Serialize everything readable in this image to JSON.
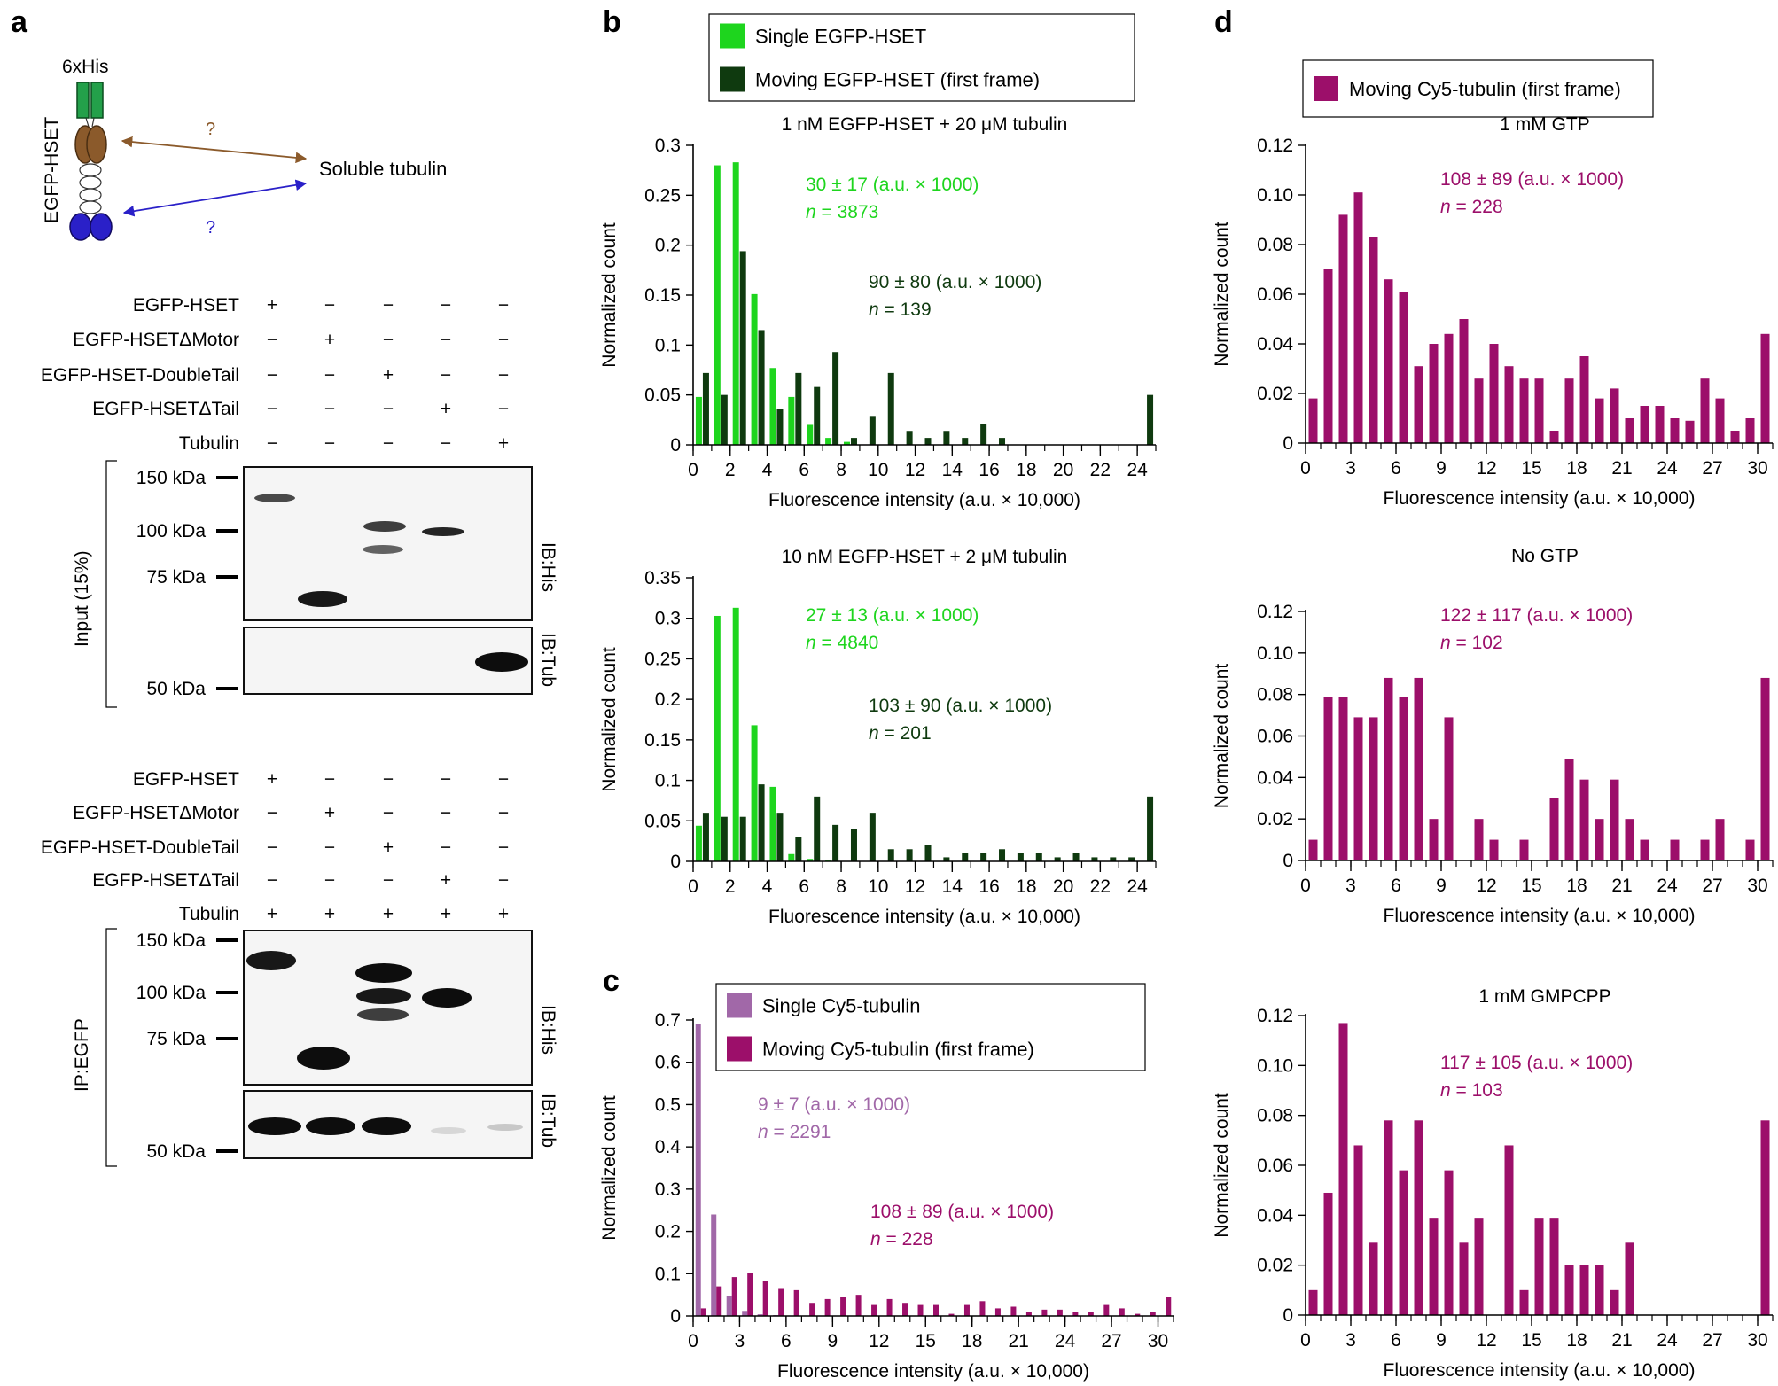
{
  "colors": {
    "single_egfp": "#1ed51e",
    "moving_egfp": "#0f3a0f",
    "single_cy5": "#a168a8",
    "moving_cy5": "#9c0f6a",
    "stat_light_green": "#1ed51e",
    "stat_dark_green": "#0f3a0f",
    "stat_light_purple": "#a168a8",
    "stat_magenta": "#9c0f6a",
    "arrow_brown": "#8b5a2b",
    "arrow_blue": "#2a20c8",
    "motor_blue": "#2a20c8",
    "tail_green": "#23a04a"
  },
  "panel_labels": {
    "a": "a",
    "b": "b",
    "c": "c",
    "d": "d"
  },
  "schematic": {
    "tag": "6xHis",
    "construct": "EGFP-HSET",
    "partner": "Soluble tubulin",
    "question": "?"
  },
  "blots": {
    "row_labels": [
      "EGFP-HSET",
      "EGFP-HSETΔMotor",
      "EGFP-HSET-DoubleTail",
      "EGFP-HSETΔTail",
      "Tubulin"
    ],
    "input_signs": [
      [
        "+",
        "−",
        "−",
        "−",
        "−"
      ],
      [
        "−",
        "+",
        "−",
        "−",
        "−"
      ],
      [
        "−",
        "−",
        "+",
        "−",
        "−"
      ],
      [
        "−",
        "−",
        "−",
        "+",
        "−"
      ],
      [
        "−",
        "−",
        "−",
        "−",
        "+"
      ]
    ],
    "ip_signs": [
      [
        "+",
        "−",
        "−",
        "−",
        "−"
      ],
      [
        "−",
        "+",
        "−",
        "−",
        "−"
      ],
      [
        "−",
        "−",
        "+",
        "−",
        "−"
      ],
      [
        "−",
        "−",
        "−",
        "+",
        "−"
      ],
      [
        "+",
        "+",
        "+",
        "+",
        "+"
      ]
    ],
    "mw_markers": [
      "150 kDa",
      "100 kDa",
      "75 kDa",
      "50 kDa"
    ],
    "input_label": "Input (15%)",
    "ip_label": "IP:EGFP",
    "ib_his": "IB:His",
    "ib_tub": "IB:Tub"
  },
  "chart_data": [
    {
      "id": "b-top",
      "type": "bar",
      "title": "1 nM EGFP-HSET + 20 μM tubulin",
      "xlabel": "Fluorescence intensity (a.u. × 10,000)",
      "ylabel": "Normalized count",
      "xlim": [
        0,
        25
      ],
      "ylim": [
        0,
        0.3
      ],
      "xticks": [
        0,
        2,
        4,
        6,
        8,
        10,
        12,
        14,
        16,
        18,
        20,
        22,
        24
      ],
      "yticks": [
        0,
        0.05,
        0.1,
        0.15,
        0.2,
        0.25,
        0.3
      ],
      "ytick_labels": [
        "0",
        "0.05",
        "0.1",
        "0.15",
        "0.2",
        "0.25",
        "0.3"
      ],
      "legend": [
        "Single EGFP-HSET",
        "Moving EGFP-HSET (first frame)"
      ],
      "annotations": [
        {
          "line1": "30 ± 17 (a.u. × 1000)",
          "line2": "n = 3873",
          "series": 0
        },
        {
          "line1": "90 ± 80 (a.u. × 1000)",
          "line2": "n = 139",
          "series": 1
        }
      ],
      "series": [
        {
          "name": "Single EGFP-HSET",
          "x": [
            1,
            2,
            3,
            4,
            5,
            6,
            7,
            8,
            9
          ],
          "values": [
            0.048,
            0.28,
            0.283,
            0.151,
            0.077,
            0.048,
            0.02,
            0.007,
            0.003
          ]
        },
        {
          "name": "Moving EGFP-HSET (first frame)",
          "x": [
            1,
            2,
            3,
            4,
            5,
            6,
            7,
            8,
            9,
            10,
            11,
            12,
            13,
            14,
            15,
            16,
            17,
            18,
            19,
            20,
            21,
            22,
            23,
            24,
            25
          ],
          "values": [
            0.072,
            0.05,
            0.194,
            0.115,
            0.036,
            0.072,
            0.058,
            0.093,
            0.007,
            0.029,
            0.072,
            0.014,
            0.007,
            0.014,
            0.007,
            0.021,
            0.007,
            0.0,
            0.0,
            0.0,
            0.0,
            0.0,
            0.0,
            0.0,
            0.05
          ]
        }
      ]
    },
    {
      "id": "b-bottom",
      "type": "bar",
      "title": "10 nM EGFP-HSET + 2 μM tubulin",
      "xlabel": "Fluorescence intensity (a.u. × 10,000)",
      "ylabel": "Normalized count",
      "xlim": [
        0,
        25
      ],
      "ylim": [
        0,
        0.35
      ],
      "xticks": [
        0,
        2,
        4,
        6,
        8,
        10,
        12,
        14,
        16,
        18,
        20,
        22,
        24
      ],
      "yticks": [
        0,
        0.05,
        0.1,
        0.15,
        0.2,
        0.25,
        0.3,
        0.35
      ],
      "ytick_labels": [
        "0",
        "0.05",
        "0.1",
        "0.15",
        "0.2",
        "0.25",
        "0.3",
        "0.35"
      ],
      "annotations": [
        {
          "line1": "27 ± 13 (a.u. × 1000)",
          "line2": "n = 4840",
          "series": 0
        },
        {
          "line1": "103 ± 90 (a.u. × 1000)",
          "line2": "n = 201",
          "series": 1
        }
      ],
      "series": [
        {
          "name": "Single EGFP-HSET",
          "x": [
            1,
            2,
            3,
            4,
            5,
            6,
            7,
            8
          ],
          "values": [
            0.044,
            0.303,
            0.313,
            0.168,
            0.092,
            0.009,
            0.003,
            0.001
          ]
        },
        {
          "name": "Moving EGFP-HSET (first frame)",
          "x": [
            1,
            2,
            3,
            4,
            5,
            6,
            7,
            8,
            9,
            10,
            11,
            12,
            13,
            14,
            15,
            16,
            17,
            18,
            19,
            20,
            21,
            22,
            23,
            24,
            25
          ],
          "values": [
            0.06,
            0.055,
            0.055,
            0.095,
            0.06,
            0.03,
            0.08,
            0.045,
            0.04,
            0.06,
            0.015,
            0.015,
            0.02,
            0.005,
            0.01,
            0.01,
            0.015,
            0.01,
            0.01,
            0.005,
            0.01,
            0.005,
            0.005,
            0.005,
            0.08
          ]
        }
      ]
    },
    {
      "id": "c",
      "type": "bar",
      "title": "",
      "xlabel": "Fluorescence intensity (a.u. × 10,000)",
      "ylabel": "Normalized count",
      "xlim": [
        0,
        31
      ],
      "ylim": [
        0,
        0.7
      ],
      "xticks": [
        0,
        3,
        6,
        9,
        12,
        15,
        18,
        21,
        24,
        27,
        30
      ],
      "yticks": [
        0,
        0.1,
        0.2,
        0.3,
        0.4,
        0.5,
        0.6,
        0.7
      ],
      "ytick_labels": [
        "0",
        "0.1",
        "0.2",
        "0.3",
        "0.4",
        "0.5",
        "0.6",
        "0.7"
      ],
      "legend": [
        "Single Cy5-tubulin",
        "Moving Cy5-tubulin (first frame)"
      ],
      "annotations": [
        {
          "line1": "9 ± 7 (a.u. × 1000)",
          "line2": "n = 2291",
          "series": 0
        },
        {
          "line1": "108 ± 89 (a.u. × 1000)",
          "line2": "n = 228",
          "series": 1
        }
      ],
      "series": [
        {
          "name": "Single Cy5-tubulin",
          "x": [
            1,
            2,
            3,
            4,
            5,
            6
          ],
          "values": [
            0.69,
            0.24,
            0.048,
            0.012,
            0.004,
            0.002
          ]
        },
        {
          "name": "Moving Cy5-tubulin (first frame)",
          "x": [
            1,
            2,
            3,
            4,
            5,
            6,
            7,
            8,
            9,
            10,
            11,
            12,
            13,
            14,
            15,
            16,
            17,
            18,
            19,
            20,
            21,
            22,
            23,
            24,
            25,
            26,
            27,
            28,
            29,
            30,
            31
          ],
          "values": [
            0.018,
            0.07,
            0.092,
            0.101,
            0.083,
            0.066,
            0.061,
            0.031,
            0.04,
            0.044,
            0.05,
            0.026,
            0.04,
            0.031,
            0.026,
            0.026,
            0.005,
            0.026,
            0.035,
            0.018,
            0.022,
            0.01,
            0.015,
            0.015,
            0.01,
            0.009,
            0.026,
            0.018,
            0.005,
            0.01,
            0.044
          ]
        }
      ]
    },
    {
      "id": "d-top",
      "type": "bar",
      "title": "1 mM GTP",
      "xlabel": "Fluorescence intensity (a.u. × 10,000)",
      "ylabel": "Normalized count",
      "xlim": [
        0,
        31
      ],
      "ylim": [
        0,
        0.12
      ],
      "xticks": [
        0,
        3,
        6,
        9,
        12,
        15,
        18,
        21,
        24,
        27,
        30
      ],
      "yticks": [
        0,
        0.02,
        0.04,
        0.06,
        0.08,
        0.1,
        0.12
      ],
      "ytick_labels": [
        "0",
        "0.02",
        "0.04",
        "0.06",
        "0.08",
        "0.10",
        "0.12"
      ],
      "legend": [
        "Moving Cy5-tubulin (first frame)"
      ],
      "annotations": [
        {
          "line1": "108 ± 89 (a.u.  × 1000)",
          "line2": "n = 228",
          "series": 0
        }
      ],
      "series": [
        {
          "name": "Moving Cy5-tubulin (first frame)",
          "x": [
            1,
            2,
            3,
            4,
            5,
            6,
            7,
            8,
            9,
            10,
            11,
            12,
            13,
            14,
            15,
            16,
            17,
            18,
            19,
            20,
            21,
            22,
            23,
            24,
            25,
            26,
            27,
            28,
            29,
            30,
            31
          ],
          "values": [
            0.018,
            0.07,
            0.092,
            0.101,
            0.083,
            0.066,
            0.061,
            0.031,
            0.04,
            0.044,
            0.05,
            0.026,
            0.04,
            0.031,
            0.026,
            0.026,
            0.005,
            0.026,
            0.035,
            0.018,
            0.022,
            0.01,
            0.015,
            0.015,
            0.01,
            0.009,
            0.026,
            0.018,
            0.005,
            0.01,
            0.044
          ]
        }
      ]
    },
    {
      "id": "d-middle",
      "type": "bar",
      "title": "No GTP",
      "xlabel": "Fluorescence intensity (a.u. × 10,000)",
      "ylabel": "Normalized count",
      "xlim": [
        0,
        31
      ],
      "ylim": [
        0,
        0.12
      ],
      "xticks": [
        0,
        3,
        6,
        9,
        12,
        15,
        18,
        21,
        24,
        27,
        30
      ],
      "yticks": [
        0,
        0.02,
        0.04,
        0.06,
        0.08,
        0.1,
        0.12
      ],
      "ytick_labels": [
        "0",
        "0.02",
        "0.04",
        "0.06",
        "0.08",
        "0.10",
        "0.12"
      ],
      "annotations": [
        {
          "line1": "122 ± 117 (a.u. × 1000)",
          "line2": "n = 102",
          "series": 0
        }
      ],
      "series": [
        {
          "name": "Moving Cy5-tubulin (first frame)",
          "x": [
            1,
            2,
            3,
            4,
            5,
            6,
            7,
            8,
            9,
            10,
            11,
            12,
            13,
            14,
            15,
            16,
            17,
            18,
            19,
            20,
            21,
            22,
            23,
            24,
            25,
            26,
            27,
            28,
            29,
            30,
            31
          ],
          "values": [
            0.01,
            0.079,
            0.079,
            0.069,
            0.069,
            0.088,
            0.079,
            0.088,
            0.02,
            0.069,
            0.0,
            0.02,
            0.01,
            0.0,
            0.01,
            0.0,
            0.03,
            0.049,
            0.039,
            0.02,
            0.039,
            0.02,
            0.01,
            0.0,
            0.01,
            0.0,
            0.01,
            0.02,
            0.0,
            0.01,
            0.088
          ]
        }
      ]
    },
    {
      "id": "d-bottom",
      "type": "bar",
      "title": "1 mM GMPCPP",
      "xlabel": "Fluorescence intensity (a.u. × 10,000)",
      "ylabel": "Normalized count",
      "xlim": [
        0,
        31
      ],
      "ylim": [
        0,
        0.12
      ],
      "xticks": [
        0,
        3,
        6,
        9,
        12,
        15,
        18,
        21,
        24,
        27,
        30
      ],
      "yticks": [
        0,
        0.02,
        0.04,
        0.06,
        0.08,
        0.1,
        0.12
      ],
      "ytick_labels": [
        "0",
        "0.02",
        "0.04",
        "0.06",
        "0.08",
        "0.10",
        "0.12"
      ],
      "annotations": [
        {
          "line1": "117 ± 105 (a.u.  × 1000)",
          "line2": "n = 103",
          "series": 0
        }
      ],
      "series": [
        {
          "name": "Moving Cy5-tubulin (first frame)",
          "x": [
            1,
            2,
            3,
            4,
            5,
            6,
            7,
            8,
            9,
            10,
            11,
            12,
            13,
            14,
            15,
            16,
            17,
            18,
            19,
            20,
            21,
            22,
            23,
            24,
            25,
            26,
            27,
            28,
            29,
            30,
            31
          ],
          "values": [
            0.01,
            0.049,
            0.117,
            0.068,
            0.029,
            0.078,
            0.058,
            0.078,
            0.039,
            0.058,
            0.029,
            0.039,
            0.0,
            0.068,
            0.01,
            0.039,
            0.039,
            0.02,
            0.02,
            0.02,
            0.01,
            0.029,
            0.0,
            0.0,
            0.0,
            0.0,
            0.0,
            0.0,
            0.0,
            0.0,
            0.078
          ]
        }
      ]
    }
  ]
}
